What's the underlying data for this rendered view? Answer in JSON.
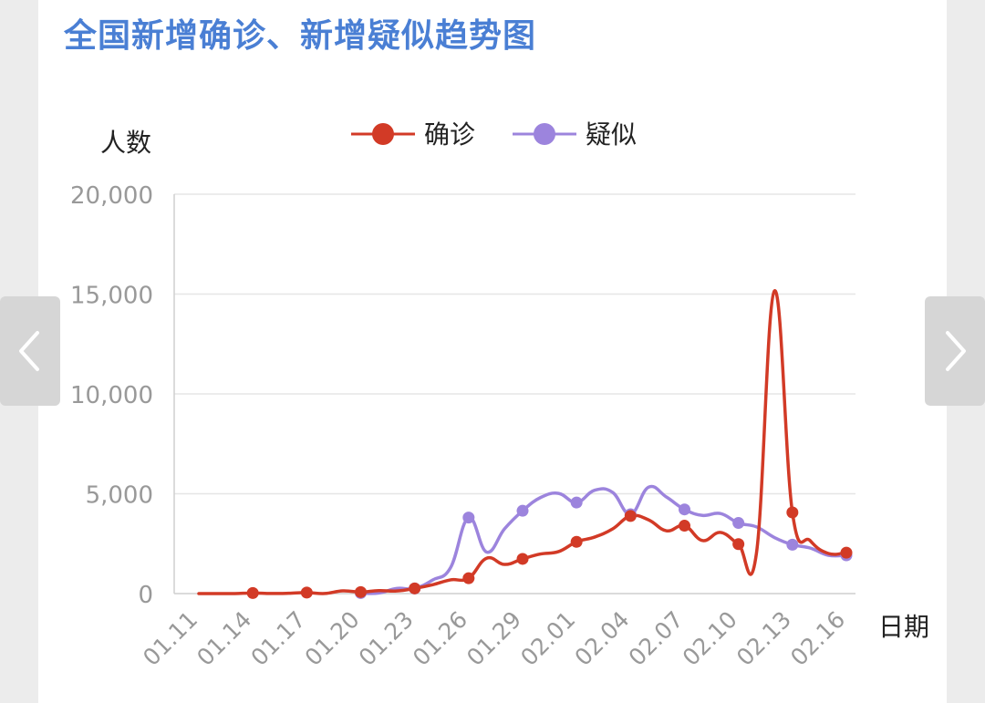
{
  "title": "全国新增确诊、新增疑似趋势图",
  "chart_data": {
    "type": "line",
    "ylabel": "人数",
    "xlabel": "日期",
    "ylim": [
      0,
      20000
    ],
    "yticks": [
      0,
      5000,
      10000,
      15000,
      20000
    ],
    "ytick_labels": [
      "0",
      "5,000",
      "10,000",
      "15,000",
      "20,000"
    ],
    "xticks": [
      "01.11",
      "01.14",
      "01.17",
      "01.20",
      "01.23",
      "01.26",
      "01.29",
      "02.01",
      "02.04",
      "02.07",
      "02.10",
      "02.13",
      "02.16"
    ],
    "grid": true,
    "legend_position": "top-center",
    "dates": [
      "01.11",
      "01.12",
      "01.13",
      "01.14",
      "01.15",
      "01.16",
      "01.17",
      "01.18",
      "01.19",
      "01.20",
      "01.21",
      "01.22",
      "01.23",
      "01.24",
      "01.25",
      "01.26",
      "01.27",
      "01.28",
      "01.29",
      "01.30",
      "01.31",
      "02.01",
      "02.02",
      "02.03",
      "02.04",
      "02.05",
      "02.06",
      "02.07",
      "02.08",
      "02.09",
      "02.10",
      "02.11",
      "02.12",
      "02.13",
      "02.14",
      "02.15",
      "02.16"
    ],
    "series": [
      {
        "name": "确诊",
        "color": "#d23a26",
        "values": [
          null,
          null,
          null,
          30,
          null,
          null,
          50,
          null,
          null,
          77,
          null,
          null,
          259,
          null,
          null,
          769,
          null,
          null,
          1737,
          null,
          null,
          2590,
          null,
          null,
          3887,
          null,
          null,
          3399,
          null,
          null,
          2478,
          null,
          null,
          4065,
          null,
          null,
          2048
        ],
        "full_values": [
          0,
          0,
          0,
          30,
          4,
          17,
          50,
          4,
          136,
          77,
          149,
          131,
          259,
          444,
          688,
          769,
          1771,
          1459,
          1737,
          1982,
          2102,
          2590,
          2829,
          3235,
          3887,
          3694,
          3143,
          3399,
          2656,
          3062,
          2478,
          2015,
          15152,
          4065,
          2641,
          2009,
          2048
        ]
      },
      {
        "name": "疑似",
        "color": "#9c84dd",
        "values": [
          null,
          null,
          null,
          null,
          null,
          null,
          null,
          null,
          null,
          27,
          null,
          null,
          257,
          null,
          null,
          3806,
          null,
          null,
          4148,
          null,
          null,
          4562,
          null,
          null,
          3971,
          null,
          null,
          4214,
          null,
          null,
          3536,
          null,
          null,
          2450,
          null,
          null,
          1918
        ],
        "full_values": [
          null,
          null,
          null,
          null,
          null,
          null,
          null,
          null,
          null,
          27,
          26,
          257,
          257,
          680,
          1309,
          3806,
          2077,
          3248,
          4148,
          4812,
          5019,
          4562,
          5173,
          5072,
          3971,
          5328,
          4833,
          4214,
          3916,
          4008,
          3536,
          3342,
          2807,
          2450,
          2277,
          1918,
          1918
        ]
      }
    ]
  }
}
